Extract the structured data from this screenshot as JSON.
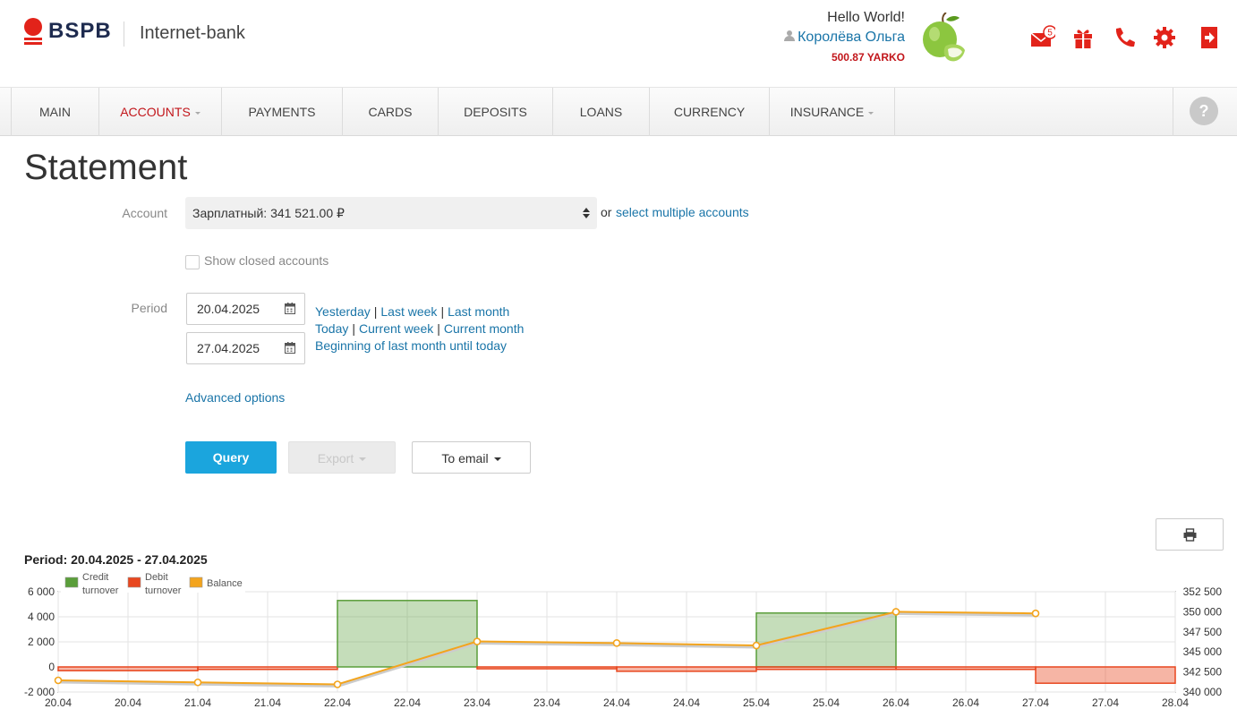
{
  "header": {
    "brand": "BSPB",
    "title": "Internet-bank",
    "hello": "Hello World!",
    "user_name": "Королёва Ольга",
    "points": "500.87 YARKO",
    "mail_badge": "5"
  },
  "nav": {
    "items": [
      {
        "label": "MAIN"
      },
      {
        "label": "ACCOUNTS"
      },
      {
        "label": "PAYMENTS"
      },
      {
        "label": "CARDS"
      },
      {
        "label": "DEPOSITS"
      },
      {
        "label": "LOANS"
      },
      {
        "label": "CURRENCY"
      },
      {
        "label": "INSURANCE"
      }
    ],
    "help": "?"
  },
  "main": {
    "title": "Statement",
    "account_label": "Account",
    "account_value": "Зарплатный: 341 521.00 ₽",
    "or": "or",
    "multi_link": "select multiple accounts",
    "show_closed": "Show closed accounts",
    "period_label": "Period",
    "date_from": "20.04.2025",
    "date_to": "27.04.2025",
    "quick": {
      "yesterday": "Yesterday",
      "last_week": "Last week",
      "last_month": "Last month",
      "today": "Today",
      "current_week": "Current week",
      "current_month": "Current month",
      "beginning": "Beginning of last month until today",
      "sep": "|"
    },
    "advanced": "Advanced options",
    "query": "Query",
    "export": "Export",
    "to_email": "To email"
  },
  "chart_data": {
    "type": "area",
    "title": "Period: 20.04.2025 - 27.04.2025",
    "legend": [
      "Credit turnover",
      "Debit turnover",
      "Balance"
    ],
    "legend_lines": [
      [
        "Credit",
        "turnover"
      ],
      [
        "Debit",
        "turnover"
      ],
      [
        "Balance"
      ]
    ],
    "colors": {
      "credit": "#5a9e3a",
      "debit": "#e8471f",
      "balance": "#f3a41d"
    },
    "x_ticks": [
      "20.04",
      "20.04",
      "21.04",
      "21.04",
      "22.04",
      "22.04",
      "23.04",
      "23.04",
      "24.04",
      "24.04",
      "25.04",
      "25.04",
      "26.04",
      "26.04",
      "27.04",
      "27.04",
      "28.04"
    ],
    "y_left": {
      "min": -2000,
      "max": 6000,
      "ticks": [
        -2000,
        0,
        2000,
        4000,
        6000
      ],
      "tick_labels": [
        "-2 000",
        "0",
        "2 000",
        "4 000",
        "6 000"
      ]
    },
    "y_right": {
      "min": 340000,
      "max": 352500,
      "ticks": [
        340000,
        342500,
        345000,
        347500,
        350000,
        352500
      ],
      "tick_labels": [
        "340 000",
        "342 500",
        "345 000",
        "347 500",
        "350 000",
        "352 500"
      ]
    },
    "days": [
      "20.04",
      "21.04",
      "22.04",
      "23.04",
      "24.04",
      "25.04",
      "26.04",
      "27.04"
    ],
    "credit": [
      0,
      0,
      5300,
      0,
      0,
      4300,
      0,
      0
    ],
    "debit": [
      -300,
      -200,
      0,
      -150,
      -350,
      -200,
      -200,
      -1300
    ],
    "balance": [
      341450,
      341200,
      340950,
      346300,
      346100,
      345800,
      350000,
      349800
    ]
  }
}
